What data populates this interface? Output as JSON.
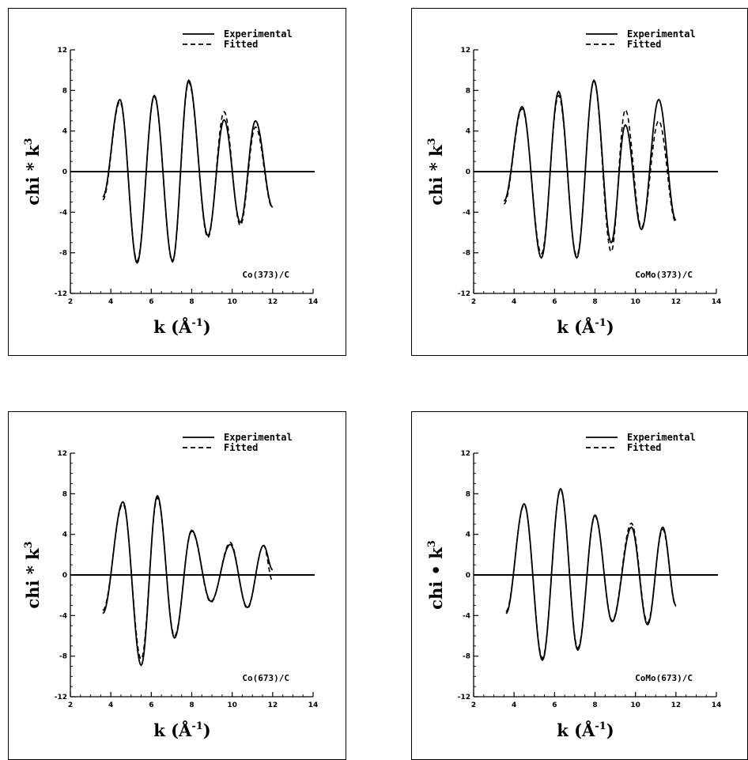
{
  "chart_data": [
    {
      "type": "line",
      "annotation": "Co(373)/C",
      "xlabel_main": "k",
      "xlabel_unit": "(Å",
      "xlabel_exp": "-1",
      "xlabel_close": ")",
      "ylabel_main": "chi * k",
      "ylabel_exp": "3",
      "xlim": [
        2,
        14
      ],
      "ylim": [
        -12,
        12
      ],
      "xticks": [
        "2",
        "4",
        "6",
        "8",
        "10",
        "12",
        "14"
      ],
      "yticks": [
        "-12",
        "-8",
        "-4",
        "0",
        "4",
        "8",
        "12"
      ],
      "grid": false,
      "legend_position": "top-right",
      "series": [
        {
          "name": "Experimental",
          "style": "solid",
          "x": [
            3.6,
            4.45,
            5.3,
            6.15,
            7.05,
            7.85,
            8.8,
            9.6,
            10.4,
            11.15,
            12.0
          ],
          "y": [
            -2.5,
            7.1,
            -9.0,
            7.5,
            -8.8,
            9.0,
            -6.3,
            5.1,
            -5.0,
            5.0,
            -3.5
          ]
        },
        {
          "name": "Fitted",
          "style": "dashed",
          "x": [
            3.6,
            4.45,
            5.3,
            6.15,
            7.05,
            7.85,
            8.8,
            9.6,
            10.4,
            11.15,
            12.0
          ],
          "y": [
            -2.8,
            6.9,
            -8.8,
            7.4,
            -8.9,
            8.8,
            -6.5,
            5.9,
            -5.3,
            4.4,
            -3.6
          ]
        }
      ]
    },
    {
      "type": "line",
      "annotation": "CoMo(373)/C",
      "xlabel_main": "k",
      "xlabel_unit": "(Å",
      "xlabel_exp": "-1",
      "xlabel_close": ")",
      "ylabel_main": "chi * k",
      "ylabel_exp": "3",
      "xlim": [
        2,
        14
      ],
      "ylim": [
        -12,
        12
      ],
      "xticks": [
        "2",
        "4",
        "6",
        "8",
        "10",
        "12",
        "14"
      ],
      "yticks": [
        "-12",
        "-8",
        "-4",
        "0",
        "4",
        "8",
        "12"
      ],
      "grid": false,
      "legend_position": "top-right",
      "series": [
        {
          "name": "Experimental",
          "style": "solid",
          "x": [
            3.5,
            4.4,
            5.35,
            6.2,
            7.1,
            7.95,
            8.8,
            9.5,
            10.3,
            11.15,
            12.0
          ],
          "y": [
            -2.9,
            6.4,
            -8.5,
            7.9,
            -8.5,
            9.0,
            -7.0,
            4.6,
            -5.7,
            7.1,
            -4.8
          ]
        },
        {
          "name": "Fitted",
          "style": "dashed",
          "x": [
            3.5,
            4.4,
            5.35,
            6.2,
            7.1,
            7.95,
            8.8,
            9.5,
            10.3,
            11.15,
            12.0
          ],
          "y": [
            -3.2,
            6.2,
            -8.1,
            7.5,
            -8.3,
            8.9,
            -7.9,
            6.1,
            -5.5,
            5.0,
            -5.0
          ]
        }
      ]
    },
    {
      "type": "line",
      "annotation": "Co(673)/C",
      "xlabel_main": "k",
      "xlabel_unit": "(Å",
      "xlabel_exp": "-1",
      "xlabel_close": ")",
      "ylabel_main": "chi * k",
      "ylabel_exp": "3",
      "xlim": [
        2,
        14
      ],
      "ylim": [
        -12,
        12
      ],
      "xticks": [
        "2",
        "4",
        "6",
        "8",
        "10",
        "12",
        "14"
      ],
      "yticks": [
        "-12",
        "-8",
        "-4",
        "0",
        "4",
        "8",
        "12"
      ],
      "grid": false,
      "legend_position": "top-right",
      "series": [
        {
          "name": "Experimental",
          "style": "solid",
          "x": [
            3.6,
            4.6,
            5.5,
            6.3,
            7.15,
            8.0,
            8.95,
            9.9,
            10.75,
            11.55,
            12.0
          ],
          "y": [
            -3.8,
            7.2,
            -8.9,
            7.8,
            -6.2,
            4.4,
            -2.6,
            3.0,
            -3.2,
            2.9,
            0.5
          ]
        },
        {
          "name": "Fitted",
          "style": "dashed",
          "x": [
            3.6,
            4.6,
            5.5,
            6.3,
            7.15,
            8.0,
            8.95,
            9.9,
            10.75,
            11.55,
            12.0
          ],
          "y": [
            -3.5,
            7.0,
            -8.3,
            7.6,
            -6.0,
            4.3,
            -2.7,
            3.2,
            -3.3,
            2.9,
            -0.6
          ]
        }
      ]
    },
    {
      "type": "line",
      "annotation": "CoMo(673)/C",
      "xlabel_main": "k",
      "xlabel_unit": "(Å",
      "xlabel_exp": "-1",
      "xlabel_close": ")",
      "ylabel_main": "chi • k",
      "ylabel_exp": "3",
      "xlim": [
        2,
        14
      ],
      "ylim": [
        -12,
        12
      ],
      "xticks": [
        "2",
        "4",
        "6",
        "8",
        "10",
        "12",
        "14"
      ],
      "yticks": [
        "-12",
        "-8",
        "-4",
        "0",
        "4",
        "8",
        "12"
      ],
      "grid": false,
      "legend_position": "top-right",
      "series": [
        {
          "name": "Experimental",
          "style": "solid",
          "x": [
            3.6,
            4.5,
            5.4,
            6.3,
            7.15,
            8.0,
            8.85,
            9.8,
            10.6,
            11.35,
            12.0
          ],
          "y": [
            -3.8,
            7.0,
            -8.4,
            8.5,
            -7.4,
            5.9,
            -4.6,
            4.7,
            -4.9,
            4.7,
            -3.0
          ]
        },
        {
          "name": "Fitted",
          "style": "dashed",
          "x": [
            3.6,
            4.5,
            5.4,
            6.3,
            7.15,
            8.0,
            8.85,
            9.8,
            10.6,
            11.35,
            12.0
          ],
          "y": [
            -3.6,
            6.9,
            -8.2,
            8.4,
            -7.2,
            5.8,
            -4.5,
            5.1,
            -4.7,
            4.5,
            -3.1
          ]
        }
      ]
    }
  ]
}
